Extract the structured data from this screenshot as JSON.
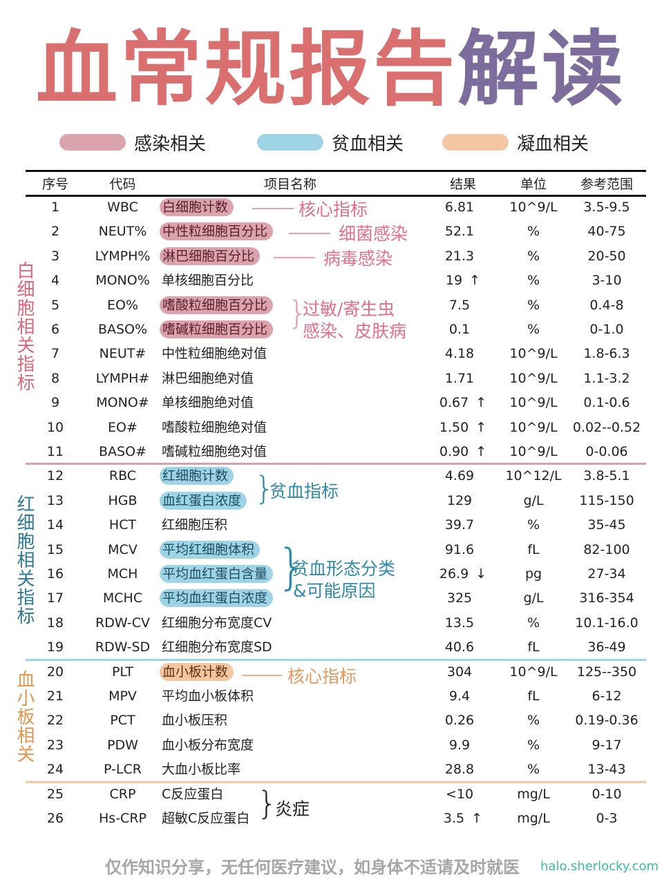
{
  "title": {
    "part1": "血常规报告",
    "part2": "解读"
  },
  "colors": {
    "title_red": "#d96f6f",
    "title_purple": "#7d6d9c",
    "infection_pink": "#dba3ab",
    "anemia_blue": "#9fd3e6",
    "coagulation_orange": "#f5c6a2"
  },
  "legend": [
    {
      "label": "感染相关",
      "color": "#dba3ab"
    },
    {
      "label": "贫血相关",
      "color": "#9fd3e6"
    },
    {
      "label": "凝血相关",
      "color": "#f5c6a2"
    }
  ],
  "table": {
    "headers": {
      "no": "序号",
      "code": "代码",
      "name": "项目名称",
      "result": "结果",
      "unit": "单位",
      "ref": "参考范围"
    },
    "sections": [
      {
        "label": "白细胞相关指标"
      },
      {
        "label": "红细胞相关指标"
      },
      {
        "label": "血小板相关"
      }
    ],
    "rows": [
      {
        "no": "1",
        "code": "WBC",
        "name": "白细胞计数",
        "result": "6.81",
        "flag": "",
        "unit": "10^9/L",
        "ref": "3.5-9.5"
      },
      {
        "no": "2",
        "code": "NEUT%",
        "name": "中性粒细胞百分比",
        "result": "52.1",
        "flag": "",
        "unit": "%",
        "ref": "40-75"
      },
      {
        "no": "3",
        "code": "LYMPH%",
        "name": "淋巴细胞百分比",
        "result": "21.3",
        "flag": "",
        "unit": "%",
        "ref": "20-50"
      },
      {
        "no": "4",
        "code": "MONO%",
        "name": "单核细胞百分比",
        "result": "19",
        "flag": "↑",
        "unit": "%",
        "ref": "3-10"
      },
      {
        "no": "5",
        "code": "EO%",
        "name": "嗜酸粒细胞百分比",
        "result": "7.5",
        "flag": "",
        "unit": "%",
        "ref": "0.4-8"
      },
      {
        "no": "6",
        "code": "BASO%",
        "name": "嗜碱粒细胞百分比",
        "result": "0.1",
        "flag": "",
        "unit": "%",
        "ref": "0-1.0"
      },
      {
        "no": "7",
        "code": "NEUT#",
        "name": "中性粒细胞绝对值",
        "result": "4.18",
        "flag": "",
        "unit": "10^9/L",
        "ref": "1.8-6.3"
      },
      {
        "no": "8",
        "code": "LYMPH#",
        "name": "淋巴细胞绝对值",
        "result": "1.71",
        "flag": "",
        "unit": "10^9/L",
        "ref": "1.1-3.2"
      },
      {
        "no": "9",
        "code": "MONO#",
        "name": "单核细胞绝对值",
        "result": "0.67",
        "flag": "↑",
        "unit": "10^9/L",
        "ref": "0.1-0.6"
      },
      {
        "no": "10",
        "code": "EO#",
        "name": "嗜酸粒细胞绝对值",
        "result": "1.50",
        "flag": "↑",
        "unit": "10^9/L",
        "ref": "0.02--0.52"
      },
      {
        "no": "11",
        "code": "BASO#",
        "name": "嗜碱粒细胞绝对值",
        "result": "0.90",
        "flag": "↑",
        "unit": "10^9/L",
        "ref": "0-0.06"
      },
      {
        "no": "12",
        "code": "RBC",
        "name": "红细胞计数",
        "result": "4.69",
        "flag": "",
        "unit": "10^12/L",
        "ref": "3.8-5.1"
      },
      {
        "no": "13",
        "code": "HGB",
        "name": "血红蛋白浓度",
        "result": "129",
        "flag": "",
        "unit": "g/L",
        "ref": "115-150"
      },
      {
        "no": "14",
        "code": "HCT",
        "name": "红细胞压积",
        "result": "39.7",
        "flag": "",
        "unit": "%",
        "ref": "35-45"
      },
      {
        "no": "15",
        "code": "MCV",
        "name": "平均红细胞体积",
        "result": "91.6",
        "flag": "",
        "unit": "fL",
        "ref": "82-100"
      },
      {
        "no": "16",
        "code": "MCH",
        "name": "平均血红蛋白含量",
        "result": "26.9",
        "flag": "↓",
        "unit": "pg",
        "ref": "27-34"
      },
      {
        "no": "17",
        "code": "MCHC",
        "name": "平均血红蛋白浓度",
        "result": "325",
        "flag": "",
        "unit": "g/L",
        "ref": "316-354"
      },
      {
        "no": "18",
        "code": "RDW-CV",
        "name": "红细胞分布宽度CV",
        "result": "13.5",
        "flag": "",
        "unit": "%",
        "ref": "10.1-16.0"
      },
      {
        "no": "19",
        "code": "RDW-SD",
        "name": "红细胞分布宽度SD",
        "result": "40.6",
        "flag": "",
        "unit": "fL",
        "ref": "36-49"
      },
      {
        "no": "20",
        "code": "PLT",
        "name": "血小板计数",
        "result": "304",
        "flag": "",
        "unit": "10^9/L",
        "ref": "125--350"
      },
      {
        "no": "21",
        "code": "MPV",
        "name": "平均血小板体积",
        "result": "9.4",
        "flag": "",
        "unit": "fL",
        "ref": "6-12"
      },
      {
        "no": "22",
        "code": "PCT",
        "name": "血小板压积",
        "result": "0.26",
        "flag": "",
        "unit": "%",
        "ref": "0.19-0.36"
      },
      {
        "no": "23",
        "code": "PDW",
        "name": "血小板分布宽度",
        "result": "9.9",
        "flag": "",
        "unit": "%",
        "ref": "9-17"
      },
      {
        "no": "24",
        "code": "P-LCR",
        "name": "大血小板比率",
        "result": "28.8",
        "flag": "",
        "unit": "%",
        "ref": "13-43"
      },
      {
        "no": "25",
        "code": "CRP",
        "name": "C反应蛋白",
        "result": "<10",
        "flag": "",
        "unit": "mg/L",
        "ref": "0-10"
      },
      {
        "no": "26",
        "code": "Hs-CRP",
        "name": "超敏C反应蛋白",
        "result": "3.5",
        "flag": "↑",
        "unit": "mg/L",
        "ref": "0-3"
      }
    ]
  },
  "annotations": {
    "wbc": "核心指标",
    "neut": "细菌感染",
    "lymph": "病毒感染",
    "eo_baso_line1": "过敏/寄生虫",
    "eo_baso_line2": "感染、皮肤病",
    "rbc_hgb": "贫血指标",
    "mcv_line1": "贫血形态分类",
    "mcv_line2": "&可能原因",
    "plt": "核心指标",
    "crp": "炎症"
  },
  "footer": {
    "disclaimer": "仅作知识分享，无任何医疗建议，如身体不适请及时就医",
    "site": "halo.sherlocky.com"
  }
}
